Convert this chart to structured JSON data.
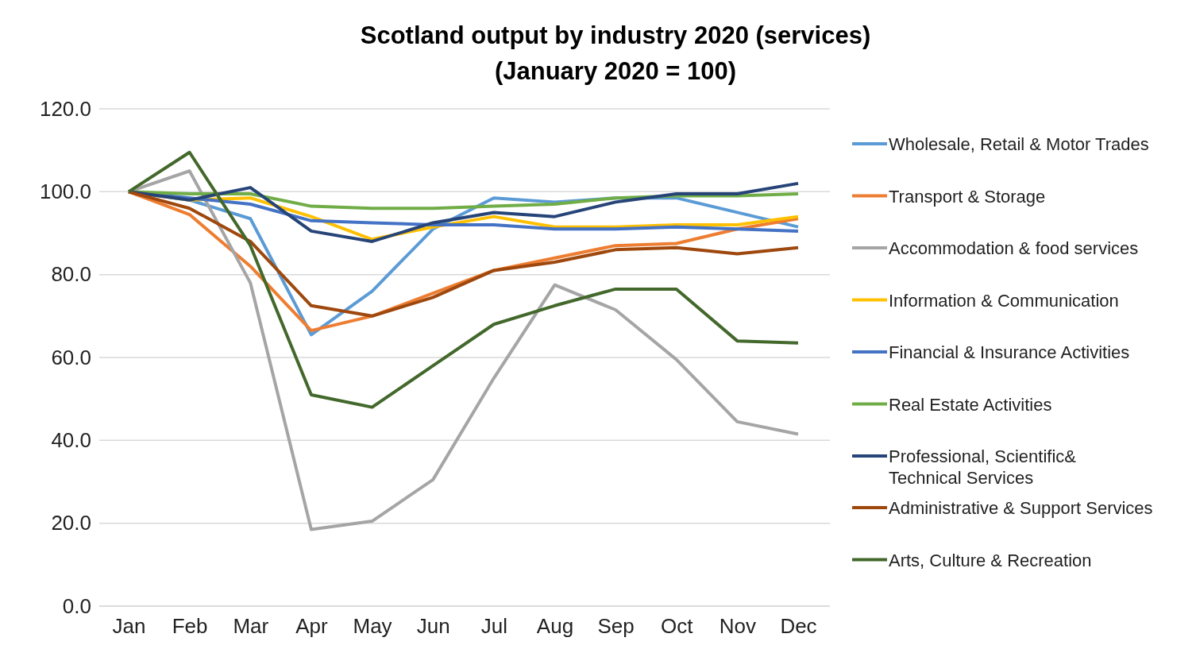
{
  "chart_data": {
    "type": "line",
    "title": "Scotland output by industry 2020 (services)",
    "subtitle": "(January 2020 = 100)",
    "categories": [
      "Jan",
      "Feb",
      "Mar",
      "Apr",
      "May",
      "Jun",
      "Jul",
      "Aug",
      "Sep",
      "Oct",
      "Nov",
      "Dec"
    ],
    "ylim": [
      0,
      120
    ],
    "yticks": [
      {
        "value": 0,
        "label": "0.0"
      },
      {
        "value": 20,
        "label": "20.0"
      },
      {
        "value": 40,
        "label": "40.0"
      },
      {
        "value": 60,
        "label": "60.0"
      },
      {
        "value": 80,
        "label": "80.0"
      },
      {
        "value": 100,
        "label": "100.0"
      },
      {
        "value": 120,
        "label": "120.0"
      }
    ],
    "grid": "y",
    "legend": "right",
    "marker": "none",
    "line_style": "solid",
    "series": [
      {
        "name": "Wholesale, Retail & Motor Trades",
        "color": "#5b9bd5",
        "values": [
          100,
          98,
          93.5,
          65.5,
          76,
          91,
          98.5,
          97.5,
          98.5,
          98.5,
          95,
          91.5
        ]
      },
      {
        "name": "Transport & Storage",
        "color": "#ed7d31",
        "values": [
          100,
          94.5,
          82,
          66.5,
          70,
          75.5,
          81,
          84,
          87,
          87.5,
          91,
          93.5
        ]
      },
      {
        "name": "Accommodation & food services",
        "color": "#a5a5a5",
        "values": [
          100,
          105,
          78,
          18.5,
          20.5,
          30.5,
          55,
          77.5,
          71.5,
          59.5,
          44.5,
          41.5
        ]
      },
      {
        "name": "Information & Communication",
        "color": "#ffc000",
        "values": [
          100,
          98,
          98.5,
          94,
          88.5,
          91.5,
          94,
          91.5,
          91.5,
          92,
          92,
          94
        ]
      },
      {
        "name": "Financial & Insurance Activities",
        "color": "#4472c4",
        "values": [
          100,
          98.5,
          97,
          93,
          92.5,
          92,
          92,
          91,
          91,
          91.5,
          91,
          90.5
        ]
      },
      {
        "name": "Real Estate Activities",
        "color": "#70ad47",
        "values": [
          100,
          99.5,
          99.5,
          96.5,
          96,
          96,
          96.5,
          97,
          98.5,
          99,
          99,
          99.5
        ]
      },
      {
        "name": "Professional, Scientific& Technical Services",
        "color": "#264478",
        "values": [
          100,
          98,
          101,
          90.5,
          88,
          92.5,
          95,
          94,
          97.5,
          99.5,
          99.5,
          102
        ]
      },
      {
        "name": "Administrative & Support Services",
        "color": "#9e480e",
        "values": [
          100,
          96,
          88,
          72.5,
          70,
          74.5,
          81,
          83,
          86,
          86.5,
          85,
          86.5
        ]
      },
      {
        "name": "Arts, Culture & Recreation",
        "color": "#43682b",
        "values": [
          100,
          109.5,
          87,
          51,
          48,
          58,
          68,
          72.5,
          76.5,
          76.5,
          64,
          63.5
        ]
      }
    ]
  }
}
